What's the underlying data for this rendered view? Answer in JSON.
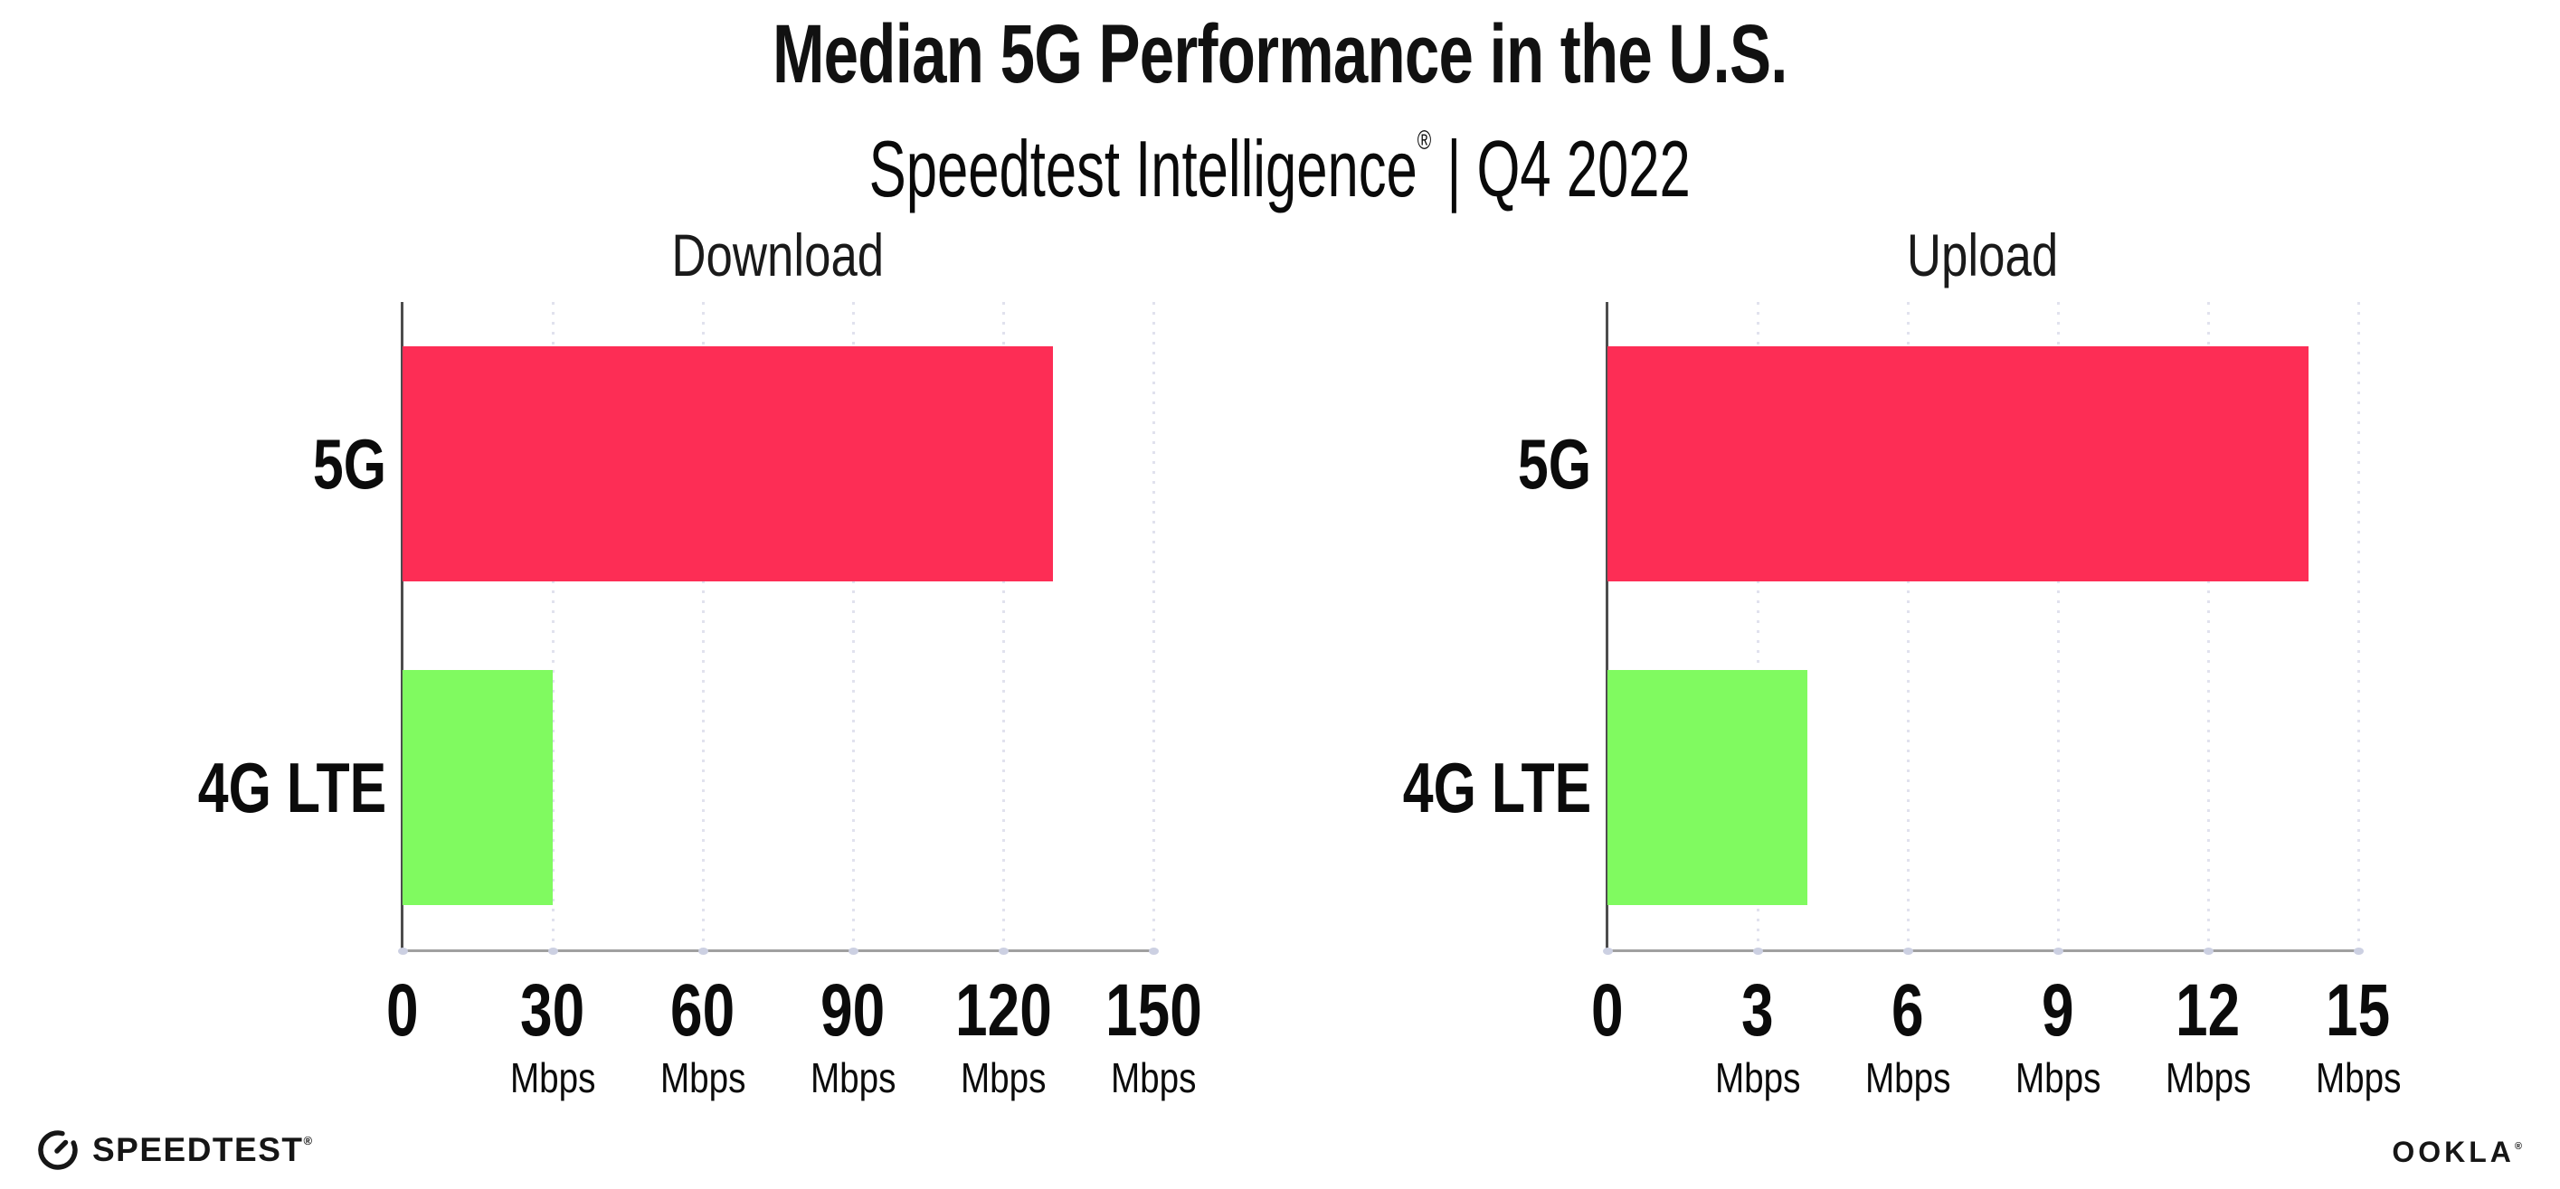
{
  "header": {
    "title": "Median 5G Performance in the U.S.",
    "subtitle_brand": "Speedtest Intelligence",
    "subtitle_reg": "®",
    "subtitle_rest": " | Q4 2022"
  },
  "chart_data": [
    {
      "type": "bar",
      "orientation": "horizontal",
      "title": "Download",
      "categories": [
        "5G",
        "4G LTE"
      ],
      "values": [
        130,
        30
      ],
      "unit": "Mbps",
      "xlim": [
        0,
        150
      ],
      "xticks": [
        0,
        30,
        60,
        90,
        120,
        150
      ],
      "bar_colors": [
        "#FD2D55",
        "#80FA60"
      ],
      "grid": "vertical-dotted",
      "legend": "none"
    },
    {
      "type": "bar",
      "orientation": "horizontal",
      "title": "Upload",
      "categories": [
        "5G",
        "4G LTE"
      ],
      "values": [
        14,
        4
      ],
      "unit": "Mbps",
      "xlim": [
        0,
        15
      ],
      "xticks": [
        0,
        3,
        6,
        9,
        12,
        15
      ],
      "bar_colors": [
        "#FD2D55",
        "#80FA60"
      ],
      "grid": "vertical-dotted",
      "legend": "none"
    }
  ],
  "footer": {
    "speedtest_label": "SPEEDTEST",
    "speedtest_reg": "®",
    "ookla_label": "OOKLA",
    "ookla_reg": "®"
  },
  "colors": {
    "bar_5g": "#FD2D55",
    "bar_4g_lte": "#80FA60",
    "gridline": "#e1e2ee",
    "x_axis_line": "#a0a0a0",
    "y_axis_spine": "#4d4d4d",
    "tick_dot": "#ccd0e2",
    "text": "#111111",
    "background": "#ffffff"
  }
}
